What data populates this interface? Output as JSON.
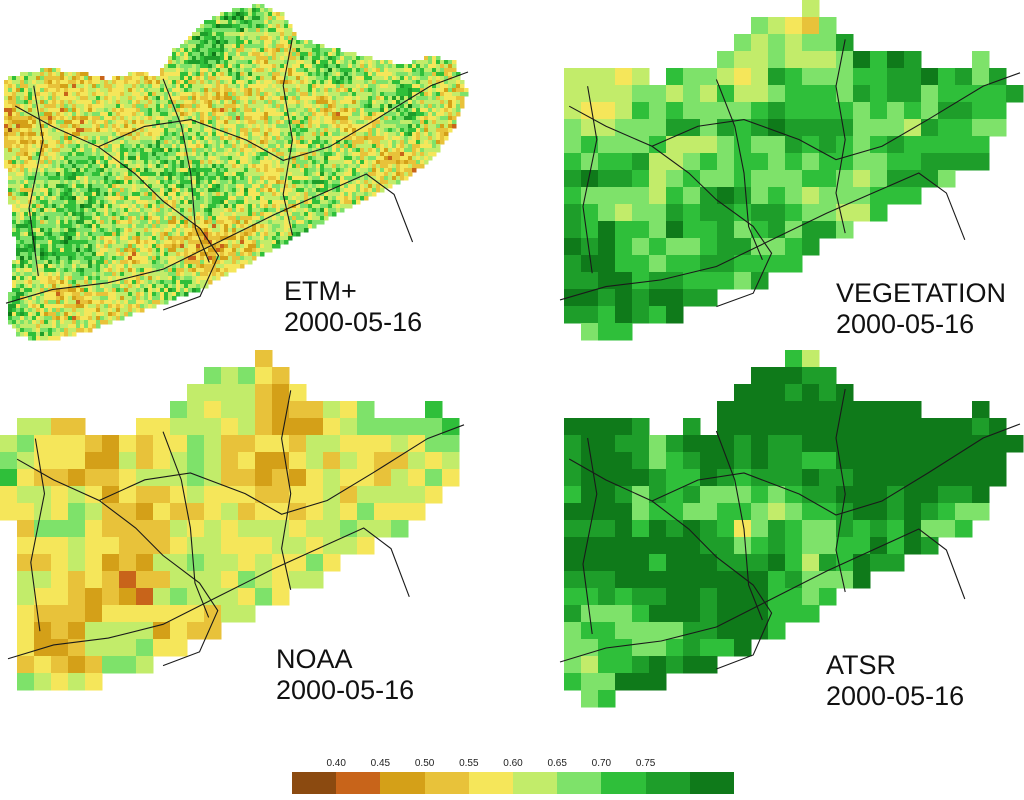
{
  "panels": [
    {
      "id": "etm",
      "sensor": "ETM+",
      "date": "2000-05-16",
      "style": "fine",
      "pixel_size": 4,
      "palette_bias": "yellow-green"
    },
    {
      "id": "veg",
      "sensor": "VEGETATION",
      "date": "2000-05-16",
      "style": "coarse",
      "pixel_size": 17,
      "palette_bias": "green"
    },
    {
      "id": "noaa",
      "sensor": "NOAA",
      "date": "2000-05-16",
      "style": "coarse",
      "pixel_size": 17,
      "palette_bias": "yellow"
    },
    {
      "id": "atsr",
      "sensor": "ATSR",
      "date": "2000-05-16",
      "style": "coarse",
      "pixel_size": 17,
      "palette_bias": "dark-green"
    }
  ],
  "legend": {
    "ticks": [
      "0.40",
      "0.45",
      "0.50",
      "0.55",
      "0.60",
      "0.65",
      "0.70",
      "0.75"
    ],
    "colors": [
      "#8b4a10",
      "#c8641a",
      "#d4a018",
      "#e8c23a",
      "#f5e65a",
      "#c2ec6a",
      "#7ee26a",
      "#2fbf3a",
      "#1e9e2a",
      "#0f7a1a"
    ]
  },
  "colors": {
    "boundary_line": "#1a1a1a",
    "background": "#ffffff"
  }
}
